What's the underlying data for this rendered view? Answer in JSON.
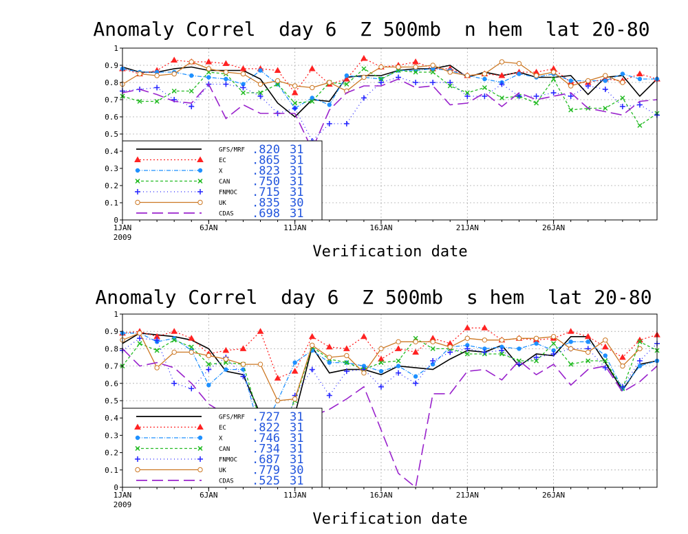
{
  "chart_data": [
    {
      "type": "line",
      "title": "Anomaly Correl  day 6  Z 500mb  n hem  lat 20-80",
      "xlabel": "Verification date",
      "ylabel": "",
      "ylim": [
        0,
        1
      ],
      "xlim": [
        1,
        31
      ],
      "grid": true,
      "legend_position": "lower-left",
      "y_ticks": [
        "0",
        "0.1",
        "0.2",
        "0.3",
        "0.4",
        "0.5",
        "0.6",
        "0.7",
        "0.8",
        "0.9",
        "1"
      ],
      "x_ticks": [
        {
          "day": 1,
          "label": "1JAN",
          "sub": "2009"
        },
        {
          "day": 6,
          "label": "6JAN",
          "sub": ""
        },
        {
          "day": 11,
          "label": "11JAN",
          "sub": ""
        },
        {
          "day": 16,
          "label": "16JAN",
          "sub": ""
        },
        {
          "day": 21,
          "label": "21JAN",
          "sub": ""
        },
        {
          "day": 26,
          "label": "26JAN",
          "sub": ""
        }
      ],
      "series": [
        {
          "name": "GFS/MRF",
          "score": ".820",
          "count": "31",
          "color": "#000000",
          "dash": "",
          "marker": "none",
          "values": [
            0.89,
            0.86,
            0.86,
            0.88,
            0.89,
            0.87,
            0.87,
            0.87,
            0.82,
            0.68,
            0.6,
            0.7,
            0.69,
            0.83,
            0.84,
            0.84,
            0.87,
            0.88,
            0.88,
            0.9,
            0.83,
            0.86,
            0.84,
            0.86,
            0.83,
            0.83,
            0.84,
            0.73,
            0.83,
            0.84,
            0.72,
            0.82
          ]
        },
        {
          "name": "EC",
          "score": ".865",
          "count": "31",
          "color": "#ff2222",
          "dash": "2,3",
          "marker": "triangle",
          "values": [
            0.88,
            0.85,
            0.87,
            0.93,
            0.92,
            0.92,
            0.91,
            0.88,
            0.88,
            0.87,
            0.74,
            0.88,
            0.79,
            0.82,
            0.94,
            0.89,
            0.9,
            0.92,
            0.88,
            0.88,
            0.84,
            0.85,
            0.84,
            0.86,
            0.86,
            0.88,
            0.8,
            0.8,
            0.82,
            0.81,
            0.85,
            0.82
          ]
        },
        {
          "name": "X",
          "score": ".823",
          "count": "31",
          "color": "#1e90ff",
          "dash": "6,2,1,2",
          "marker": "circle",
          "values": [
            0.88,
            0.86,
            0.86,
            0.86,
            0.84,
            0.83,
            0.82,
            0.79,
            0.87,
            0.79,
            0.65,
            0.71,
            0.67,
            0.84,
            0.83,
            0.82,
            0.87,
            0.87,
            0.88,
            0.87,
            0.84,
            0.82,
            0.8,
            0.85,
            0.83,
            0.85,
            0.81,
            0.81,
            0.81,
            0.85,
            0.82,
            0.82
          ]
        },
        {
          "name": "CAN",
          "score": ".750",
          "count": "31",
          "color": "#22bb22",
          "dash": "4,3",
          "marker": "cross",
          "values": [
            0.72,
            0.69,
            0.69,
            0.75,
            0.75,
            0.86,
            0.85,
            0.74,
            0.74,
            0.79,
            0.68,
            0.69,
            0.8,
            0.79,
            0.88,
            0.82,
            0.87,
            0.86,
            0.86,
            0.78,
            0.74,
            0.77,
            0.71,
            0.72,
            0.68,
            0.82,
            0.64,
            0.65,
            0.65,
            0.71,
            0.55,
            0.62
          ]
        },
        {
          "name": "FNMOC",
          "score": ".715",
          "count": "31",
          "color": "#2222ff",
          "dash": "1,4",
          "marker": "plus",
          "values": [
            0.75,
            0.76,
            0.77,
            0.7,
            0.66,
            0.79,
            0.79,
            0.77,
            0.72,
            0.62,
            0.65,
            0.46,
            0.56,
            0.56,
            0.71,
            0.8,
            0.83,
            0.8,
            0.8,
            0.8,
            0.72,
            0.72,
            0.79,
            0.72,
            0.72,
            0.74,
            0.72,
            0.78,
            0.76,
            0.66,
            0.67,
            0.61
          ]
        },
        {
          "name": "UK",
          "score": ".835",
          "count": "30",
          "color": "#cc7722",
          "dash": "",
          "marker": "ocircle",
          "values": [
            0.79,
            0.85,
            0.84,
            0.85,
            0.92,
            0.88,
            0.86,
            0.85,
            0.79,
            0.81,
            0.78,
            0.77,
            0.8,
            0.75,
            0.83,
            0.89,
            0.89,
            0.89,
            0.9,
            0.86,
            0.84,
            0.85,
            0.92,
            0.91,
            0.84,
            0.86,
            0.78,
            0.81,
            0.84,
            0.8,
            null,
            null
          ]
        },
        {
          "name": "CDAS",
          "score": ".698",
          "count": "31",
          "color": "#9922cc",
          "dash": "16,7",
          "marker": "none",
          "values": [
            0.74,
            0.76,
            0.73,
            0.69,
            0.68,
            0.79,
            0.59,
            0.67,
            0.62,
            0.62,
            0.62,
            0.41,
            0.64,
            0.74,
            0.78,
            0.78,
            0.82,
            0.77,
            0.78,
            0.67,
            0.68,
            0.74,
            0.66,
            0.74,
            0.7,
            0.72,
            0.74,
            0.65,
            0.63,
            0.61,
            0.69,
            0.7
          ]
        }
      ]
    },
    {
      "type": "line",
      "title": "Anomaly Correl  day 6  Z 500mb  s hem  lat 20-80",
      "xlabel": "Verification date",
      "ylabel": "",
      "ylim": [
        0,
        1
      ],
      "xlim": [
        1,
        31
      ],
      "grid": true,
      "legend_position": "lower-left",
      "y_ticks": [
        "0",
        "0.1",
        "0.2",
        "0.3",
        "0.4",
        "0.5",
        "0.6",
        "0.7",
        "0.8",
        "0.9",
        "1"
      ],
      "x_ticks": [
        {
          "day": 1,
          "label": "1JAN",
          "sub": "2009"
        },
        {
          "day": 6,
          "label": "6JAN",
          "sub": ""
        },
        {
          "day": 11,
          "label": "11JAN",
          "sub": ""
        },
        {
          "day": 16,
          "label": "16JAN",
          "sub": ""
        },
        {
          "day": 21,
          "label": "21JAN",
          "sub": ""
        },
        {
          "day": 26,
          "label": "26JAN",
          "sub": ""
        }
      ],
      "series": [
        {
          "name": "GFS/MRF",
          "score": ".727",
          "count": "31",
          "color": "#000000",
          "dash": "",
          "marker": "none",
          "values": [
            0.83,
            0.89,
            0.88,
            0.87,
            0.85,
            0.8,
            0.67,
            0.65,
            0.42,
            0.18,
            0.42,
            0.81,
            0.66,
            0.68,
            0.68,
            0.65,
            0.7,
            0.69,
            0.68,
            0.74,
            0.79,
            0.78,
            0.82,
            0.7,
            0.77,
            0.76,
            0.87,
            0.87,
            0.72,
            0.56,
            0.71,
            0.73
          ]
        },
        {
          "name": "EC",
          "score": ".822",
          "count": "31",
          "color": "#ff2222",
          "dash": "2,3",
          "marker": "triangle",
          "values": [
            0.89,
            0.9,
            0.87,
            0.9,
            0.86,
            0.77,
            0.79,
            0.8,
            0.9,
            0.63,
            0.67,
            0.87,
            0.81,
            0.8,
            0.87,
            0.74,
            0.8,
            0.78,
            0.86,
            0.83,
            0.92,
            0.92,
            0.85,
            0.86,
            0.85,
            0.86,
            0.9,
            0.87,
            0.81,
            0.75,
            0.85,
            0.88
          ]
        },
        {
          "name": "X",
          "score": ".746",
          "count": "31",
          "color": "#1e90ff",
          "dash": "6,2,1,2",
          "marker": "circle",
          "values": [
            0.89,
            0.89,
            0.84,
            0.86,
            0.79,
            0.59,
            0.68,
            0.68,
            0.31,
            0.5,
            0.72,
            0.79,
            0.72,
            0.72,
            0.7,
            0.67,
            0.7,
            0.64,
            0.71,
            0.81,
            0.82,
            0.8,
            0.81,
            0.8,
            0.83,
            0.79,
            0.84,
            0.84,
            0.76,
            0.57,
            0.7,
            0.73
          ]
        },
        {
          "name": "CAN",
          "score": ".734",
          "count": "31",
          "color": "#22bb22",
          "dash": "4,3",
          "marker": "cross",
          "values": [
            0.7,
            0.83,
            0.79,
            0.85,
            0.81,
            0.71,
            0.72,
            0.71,
            0.38,
            0.3,
            0.5,
            0.81,
            0.74,
            0.72,
            0.68,
            0.72,
            0.73,
            0.86,
            0.8,
            0.8,
            0.77,
            0.77,
            0.77,
            0.73,
            0.73,
            0.83,
            0.71,
            0.73,
            0.73,
            0.57,
            0.84,
            0.79
          ]
        },
        {
          "name": "FNMOC",
          "score": ".687",
          "count": "31",
          "color": "#2222ff",
          "dash": "1,4",
          "marker": "plus",
          "values": [
            0.79,
            0.86,
            0.85,
            0.6,
            0.57,
            0.68,
            0.75,
            0.64,
            0.4,
            0.15,
            0.53,
            0.68,
            0.53,
            0.67,
            0.68,
            0.58,
            0.66,
            0.6,
            0.73,
            0.78,
            0.8,
            0.78,
            0.79,
            0.71,
            0.75,
            0.77,
            0.8,
            0.8,
            0.69,
            0.58,
            0.73,
            0.83
          ]
        },
        {
          "name": "UK",
          "score": ".779",
          "count": "30",
          "color": "#cc7722",
          "dash": "",
          "marker": "ocircle",
          "values": [
            0.85,
            0.89,
            0.69,
            0.78,
            0.78,
            0.76,
            0.74,
            0.71,
            0.71,
            0.5,
            0.51,
            0.82,
            0.75,
            0.76,
            0.66,
            0.8,
            0.84,
            0.84,
            0.84,
            0.81,
            0.86,
            0.85,
            0.85,
            0.86,
            0.86,
            0.87,
            0.8,
            0.78,
            0.85,
            0.7,
            0.8,
            null
          ]
        },
        {
          "name": "CDAS",
          "score": ".525",
          "count": "31",
          "color": "#9922cc",
          "dash": "16,7",
          "marker": "none",
          "values": [
            0.8,
            0.7,
            0.72,
            0.69,
            0.6,
            0.48,
            0.42,
            0.42,
            0.3,
            0.37,
            0.44,
            0.41,
            0.45,
            0.51,
            0.58,
            0.33,
            0.08,
            0.0,
            0.54,
            0.54,
            0.67,
            0.68,
            0.62,
            0.73,
            0.65,
            0.71,
            0.59,
            0.68,
            0.7,
            0.55,
            0.61,
            0.7
          ]
        }
      ]
    }
  ]
}
